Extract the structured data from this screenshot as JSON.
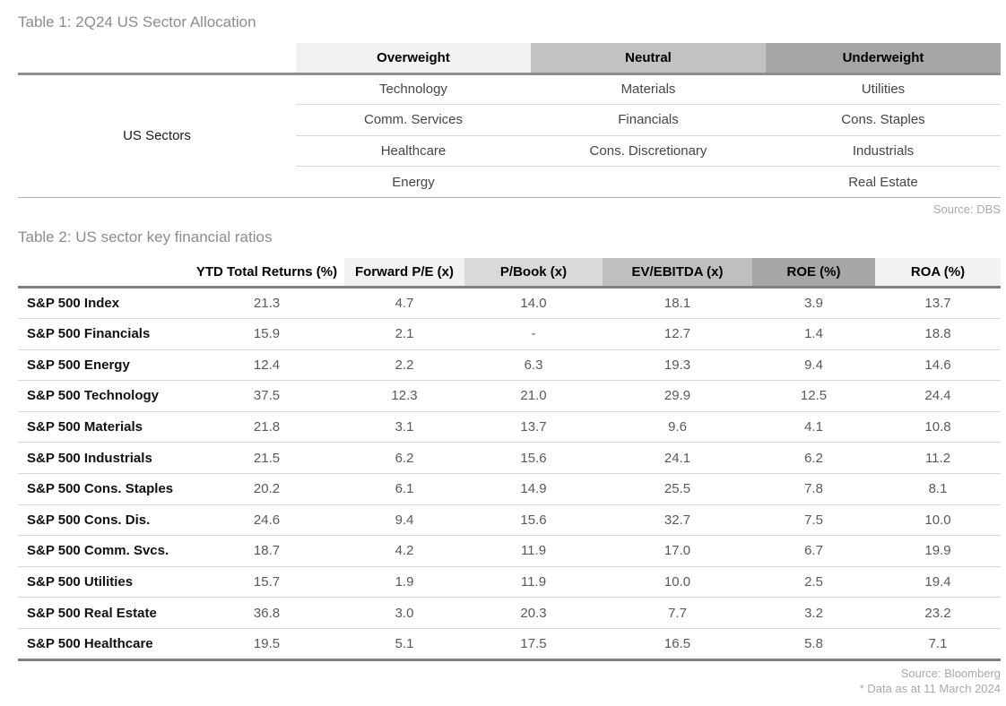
{
  "table1": {
    "title": "Table 1: 2Q24 US Sector Allocation",
    "row_group_label": "US Sectors",
    "columns": [
      {
        "label": "Overweight",
        "bg": "#f2f2f2"
      },
      {
        "label": "Neutral",
        "bg": "#c2c2c2"
      },
      {
        "label": "Underweight",
        "bg": "#a6a6a6"
      }
    ],
    "rows": [
      [
        "Technology",
        "Materials",
        "Utilities"
      ],
      [
        "Comm. Services",
        "Financials",
        "Cons. Staples"
      ],
      [
        "Healthcare",
        "Cons. Discretionary",
        "Industrials"
      ],
      [
        "Energy",
        "",
        "Real Estate"
      ]
    ],
    "source": "Source: DBS"
  },
  "table2": {
    "title": "Table 2: US sector key financial ratios",
    "columns": [
      {
        "label": "YTD Total Returns (%)",
        "bg": "#ffffff"
      },
      {
        "label": "Forward P/E (x)",
        "bg": "#f2f2f2"
      },
      {
        "label": "P/Book (x)",
        "bg": "#d9d9d9"
      },
      {
        "label": "EV/EBITDA (x)",
        "bg": "#bfbfbf"
      },
      {
        "label": "ROE (%)",
        "bg": "#a6a6a6"
      },
      {
        "label": "ROA (%)",
        "bg": "#f2f2f2"
      }
    ],
    "rows": [
      {
        "label": "S&P 500 Index",
        "values": [
          "21.3",
          "4.7",
          "14.0",
          "18.1",
          "3.9",
          "13.7"
        ]
      },
      {
        "label": "S&P 500 Financials",
        "values": [
          "15.9",
          "2.1",
          "-",
          "12.7",
          "1.4",
          "18.8"
        ]
      },
      {
        "label": "S&P 500 Energy",
        "values": [
          "12.4",
          "2.2",
          "6.3",
          "19.3",
          "9.4",
          "14.6"
        ]
      },
      {
        "label": "S&P 500 Technology",
        "values": [
          "37.5",
          "12.3",
          "21.0",
          "29.9",
          "12.5",
          "24.4"
        ]
      },
      {
        "label": "S&P 500 Materials",
        "values": [
          "21.8",
          "3.1",
          "13.7",
          "9.6",
          "4.1",
          "10.8"
        ]
      },
      {
        "label": "S&P 500 Industrials",
        "values": [
          "21.5",
          "6.2",
          "15.6",
          "24.1",
          "6.2",
          "11.2"
        ]
      },
      {
        "label": "S&P 500 Cons. Staples",
        "values": [
          "20.2",
          "6.1",
          "14.9",
          "25.5",
          "7.8",
          "8.1"
        ]
      },
      {
        "label": "S&P 500 Cons. Dis.",
        "values": [
          "24.6",
          "9.4",
          "15.6",
          "32.7",
          "7.5",
          "10.0"
        ]
      },
      {
        "label": "S&P 500 Comm. Svcs.",
        "values": [
          "18.7",
          "4.2",
          "11.9",
          "17.0",
          "6.7",
          "19.9"
        ]
      },
      {
        "label": "S&P 500 Utilities",
        "values": [
          "15.7",
          "1.9",
          "11.9",
          "10.0",
          "2.5",
          "19.4"
        ]
      },
      {
        "label": "S&P 500 Real Estate",
        "values": [
          "36.8",
          "3.0",
          "20.3",
          "7.7",
          "3.2",
          "23.2"
        ]
      },
      {
        "label": "S&P 500 Healthcare",
        "values": [
          "19.5",
          "5.1",
          "17.5",
          "16.5",
          "5.8",
          "7.1"
        ]
      }
    ],
    "source": "Source: Bloomberg",
    "footnote": "* Data as at 11 March 2024"
  }
}
